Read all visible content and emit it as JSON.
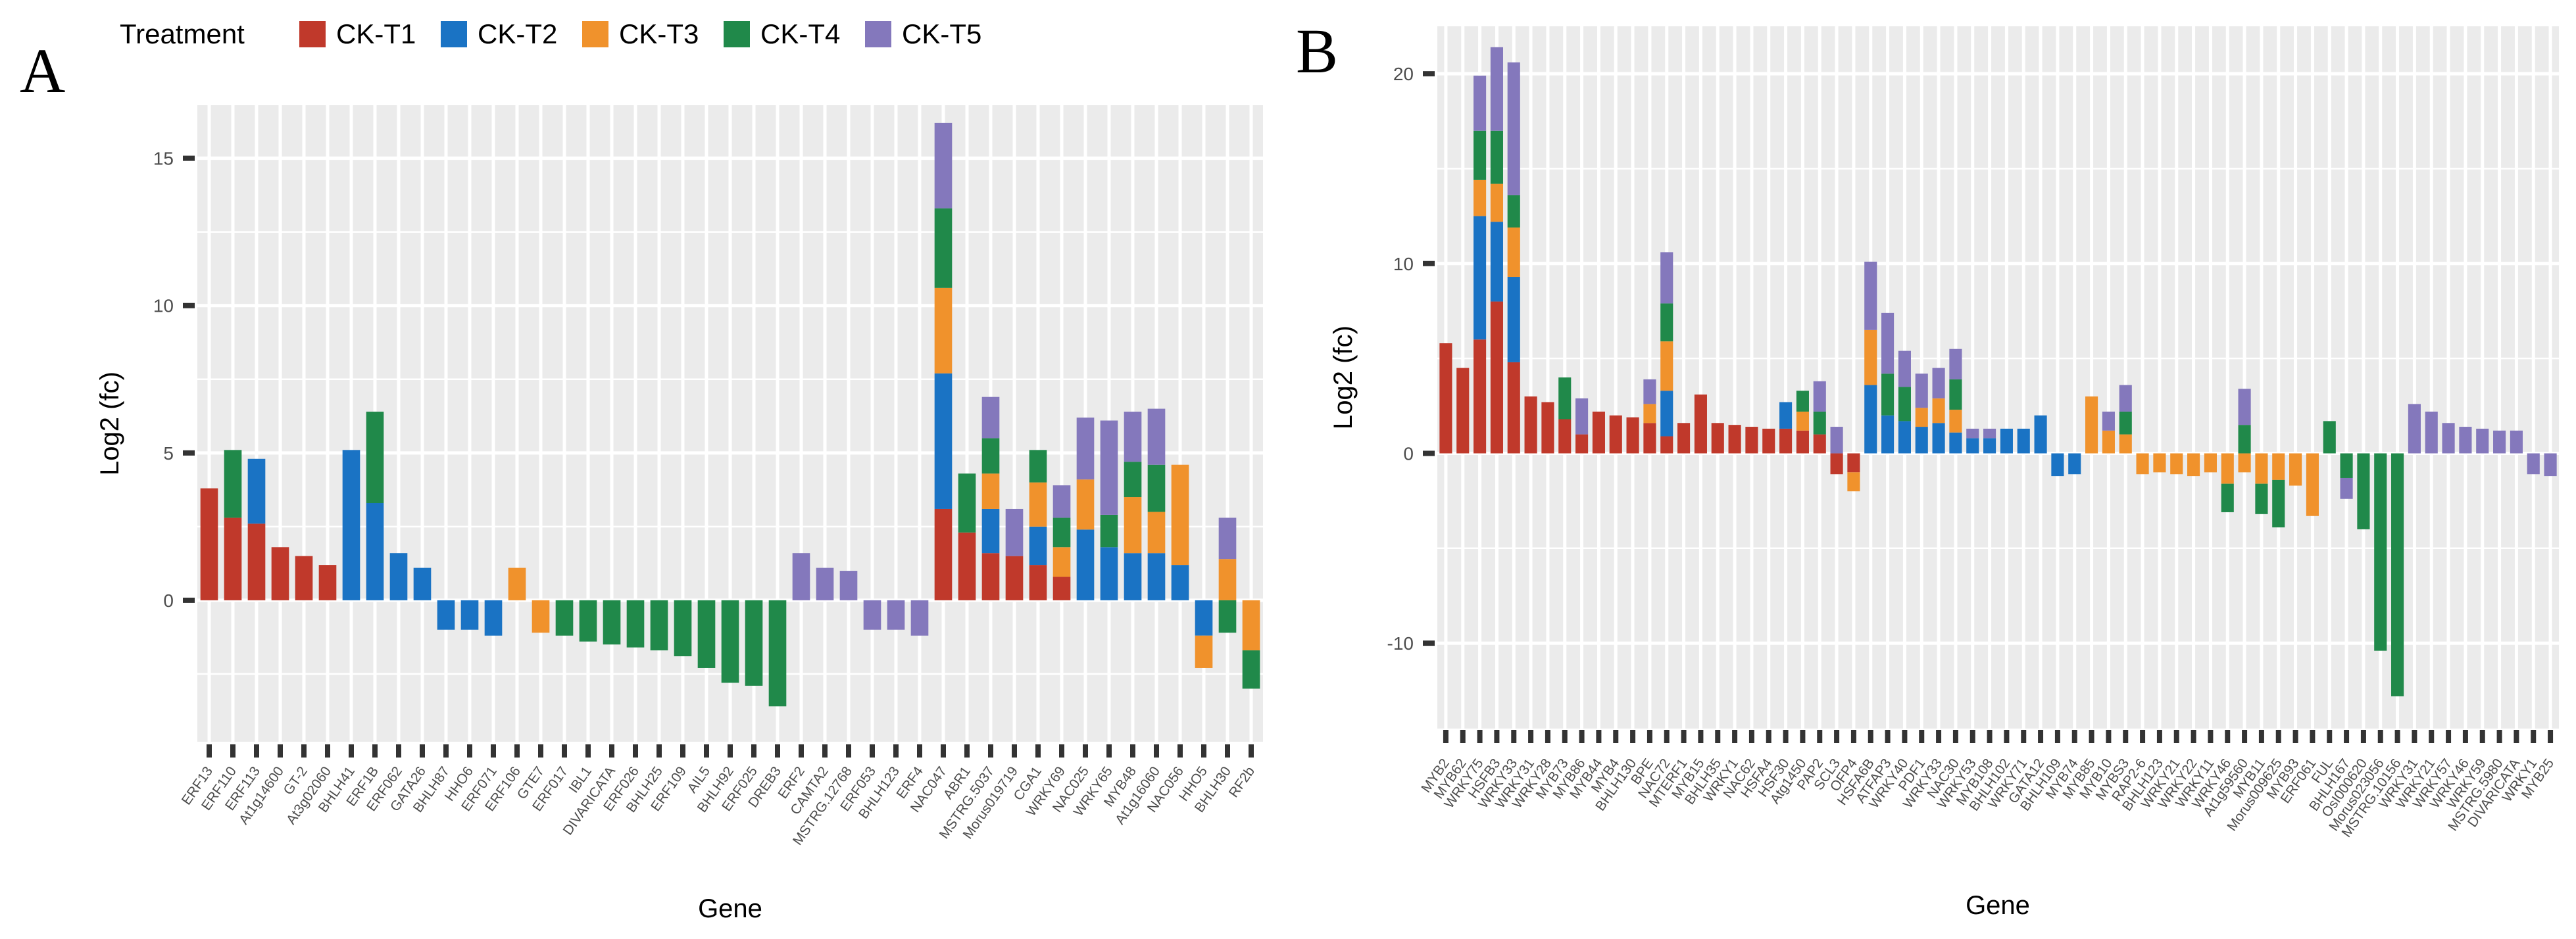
{
  "legend": {
    "title": "Treatment",
    "items": [
      {
        "name": "CK-T1",
        "color": "#C0392B"
      },
      {
        "name": "CK-T2",
        "color": "#1A73C4"
      },
      {
        "name": "CK-T3",
        "color": "#F0922C"
      },
      {
        "name": "CK-T4",
        "color": "#20894A"
      },
      {
        "name": "CK-T5",
        "color": "#8478BC"
      }
    ]
  },
  "chart_data": [
    {
      "type": "bar",
      "stacked": true,
      "panel_label": "A",
      "xlabel": "Gene",
      "ylabel": "Log2 (fc)",
      "ylim": [
        -4.8,
        16.8
      ],
      "yticks": [
        0,
        5,
        10,
        15
      ],
      "series_order": [
        "CK-T1",
        "CK-T2",
        "CK-T3",
        "CK-T4",
        "CK-T5"
      ],
      "categories": [
        "ERF13",
        "ERF110",
        "ERF113",
        "At1g14600",
        "GT-2",
        "At3g02060",
        "BHLH41",
        "ERF1B",
        "ERF062",
        "GATA26",
        "BHLH87",
        "HHO6",
        "ERF071",
        "ERF106",
        "GTE7",
        "ERF017",
        "IBL1",
        "DIVARICATA",
        "ERF026",
        "BHLH25",
        "ERF109",
        "AIL5",
        "BHLH92",
        "ERF025",
        "DREB3",
        "ERF2",
        "CAMTA2",
        "MSTRG.12768",
        "ERF053",
        "BHLH123",
        "ERF4",
        "NAC047",
        "ABR1",
        "MSTRG.5037",
        "Morus019719",
        "CGA1",
        "WRKY69",
        "NAC025",
        "WRKY65",
        "MYB48",
        "At1g16060",
        "NAC056",
        "HHO5",
        "BHLH30",
        "RF2b"
      ],
      "series": [
        {
          "name": "CK-T1",
          "values": [
            3.8,
            2.8,
            2.6,
            1.8,
            1.5,
            1.2,
            0,
            0,
            0,
            0,
            0,
            0,
            0,
            0,
            0,
            0,
            0,
            0,
            0,
            0,
            0,
            0,
            0,
            0,
            0,
            0,
            0,
            0,
            0,
            0,
            0,
            3.1,
            2.3,
            1.6,
            1.5,
            1.2,
            0.8,
            0,
            0,
            0,
            0,
            0,
            0,
            0,
            0
          ]
        },
        {
          "name": "CK-T2",
          "values": [
            0,
            0,
            2.2,
            0,
            0,
            0,
            5.1,
            3.3,
            1.6,
            1.1,
            -1.0,
            -1.0,
            -1.2,
            0,
            0,
            0,
            0,
            0,
            0,
            0,
            0,
            0,
            0,
            0,
            0,
            0,
            0,
            0,
            0,
            0,
            0,
            4.6,
            0,
            1.5,
            0,
            1.3,
            0,
            2.4,
            1.8,
            1.6,
            1.6,
            1.2,
            -1.2,
            0,
            0
          ]
        },
        {
          "name": "CK-T3",
          "values": [
            0,
            0,
            0,
            0,
            0,
            0,
            0,
            0,
            0,
            0,
            0,
            0,
            0,
            1.1,
            -1.1,
            0,
            0,
            0,
            0,
            0,
            0,
            0,
            0,
            0,
            0,
            0,
            0,
            0,
            0,
            0,
            0,
            2.9,
            0,
            1.2,
            0,
            1.5,
            1.0,
            1.7,
            0,
            1.9,
            1.4,
            3.4,
            -1.1,
            1.4,
            -1.7
          ]
        },
        {
          "name": "CK-T4",
          "values": [
            0,
            2.3,
            0,
            0,
            0,
            0,
            0,
            3.1,
            0,
            0,
            0,
            0,
            0,
            0,
            0,
            -1.2,
            -1.4,
            -1.5,
            -1.6,
            -1.7,
            -1.9,
            -2.3,
            -2.8,
            -2.9,
            -3.6,
            0,
            0,
            0,
            0,
            0,
            0,
            2.7,
            2.0,
            1.2,
            0,
            1.1,
            1.0,
            0,
            1.1,
            1.2,
            1.6,
            0,
            0,
            -1.1,
            -1.3
          ]
        },
        {
          "name": "CK-T5",
          "values": [
            0,
            0,
            0,
            0,
            0,
            0,
            0,
            0,
            0,
            0,
            0,
            0,
            0,
            0,
            0,
            0,
            0,
            0,
            0,
            0,
            0,
            0,
            0,
            0,
            0,
            1.6,
            1.1,
            1.0,
            -1.0,
            -1.0,
            -1.2,
            2.9,
            0,
            1.4,
            1.6,
            0,
            1.1,
            2.1,
            3.2,
            1.7,
            1.9,
            0,
            0,
            1.4,
            0
          ]
        }
      ]
    },
    {
      "type": "bar",
      "stacked": true,
      "panel_label": "B",
      "xlabel": "Gene",
      "ylabel": "Log2 (fc)",
      "ylim": [
        -14.5,
        22.5
      ],
      "yticks": [
        -10,
        0,
        10,
        20
      ],
      "series_order": [
        "CK-T1",
        "CK-T2",
        "CK-T3",
        "CK-T4",
        "CK-T5"
      ],
      "categories": [
        "MYB2",
        "MYB62",
        "WRKY75",
        "HSFB3",
        "WRKY33",
        "WRKY31",
        "WRKY28",
        "MYB73",
        "MYB86",
        "MYB44",
        "MYB4",
        "BHLH130",
        "BPE",
        "NAC72",
        "MTERF1",
        "MYB15",
        "BHLH35",
        "WRKY1",
        "NAC62",
        "HSFA4",
        "HSF30",
        "Atg1450",
        "PAP2",
        "SCL3",
        "OFP4",
        "HSFA6B",
        "ATFAP3",
        "WRKY40",
        "PDF1",
        "WRKY33",
        "NAC30",
        "WRKY53",
        "MYB108",
        "BHLH102",
        "WRKY71",
        "GATA12",
        "BHLH109",
        "MYB74",
        "MYB85",
        "MYB10",
        "MYBS3",
        "RAP2-6",
        "BHLH123",
        "WRKY21",
        "WRKY22",
        "WRKY11",
        "WRKY46",
        "At1g59560",
        "MYB11",
        "Morus009625",
        "MYB93",
        "ERF061",
        "FUL",
        "BHLH167",
        "OsI000620",
        "Morus023056",
        "MSTRG.10156",
        "WRKY31",
        "WRKY21",
        "WRKY57",
        "WRKY46",
        "WRKY59",
        "MSTRG.5980",
        "DIVARICATA",
        "WRKY1",
        "MYB25"
      ],
      "series": [
        {
          "name": "CK-T1",
          "values": [
            5.8,
            4.5,
            6.0,
            8.0,
            4.8,
            3.0,
            2.7,
            1.8,
            1.0,
            2.2,
            2.0,
            1.9,
            1.6,
            0.9,
            1.6,
            3.1,
            1.6,
            1.5,
            1.4,
            1.3,
            1.3,
            1.2,
            1.0,
            -1.1,
            -1.0,
            0,
            0,
            0,
            0,
            0,
            0,
            0,
            0,
            0,
            0,
            0,
            0,
            0,
            0,
            0,
            0,
            0,
            0,
            0,
            0,
            0,
            0,
            0,
            0,
            0,
            0,
            0,
            0,
            0,
            0,
            0,
            0,
            0,
            0,
            0,
            0,
            0,
            0,
            0,
            0,
            0
          ]
        },
        {
          "name": "CK-T2",
          "values": [
            0,
            0,
            6.5,
            4.2,
            4.5,
            0,
            0,
            0,
            0,
            0,
            0,
            0,
            0,
            2.4,
            0,
            0,
            0,
            0,
            0,
            0,
            1.4,
            0,
            0,
            0,
            0,
            3.6,
            2.0,
            1.7,
            1.4,
            1.6,
            1.1,
            0.8,
            0.8,
            1.3,
            1.3,
            2.0,
            -1.2,
            -1.1,
            0,
            0,
            0,
            0,
            0,
            0,
            0,
            0,
            0,
            0,
            0,
            0,
            0,
            0,
            0,
            0,
            0,
            0,
            0,
            0,
            0,
            0,
            0,
            0,
            0,
            0,
            0,
            0
          ]
        },
        {
          "name": "CK-T3",
          "values": [
            0,
            0,
            1.9,
            2.0,
            2.6,
            0,
            0,
            0,
            0,
            0,
            0,
            0,
            1.0,
            2.6,
            0,
            0,
            0,
            0,
            0,
            0,
            0,
            1.0,
            0,
            0,
            -1.0,
            2.9,
            0,
            0,
            1.0,
            1.3,
            1.2,
            0,
            0,
            0,
            0,
            0,
            0,
            0,
            3.0,
            1.2,
            1.0,
            -1.1,
            -1.0,
            -1.1,
            -1.2,
            -1.0,
            -1.6,
            -1.0,
            -1.6,
            -1.4,
            -1.7,
            -3.3,
            0,
            0,
            0,
            0,
            0,
            0,
            0,
            0,
            0,
            0,
            0,
            0,
            0,
            0
          ]
        },
        {
          "name": "CK-T4",
          "values": [
            0,
            0,
            2.6,
            2.8,
            1.7,
            0,
            0,
            2.2,
            0,
            0,
            0,
            0,
            0,
            2.0,
            0,
            0,
            0,
            0,
            0,
            0,
            0,
            1.1,
            1.2,
            0,
            0,
            0,
            2.2,
            1.8,
            0,
            0,
            1.6,
            0,
            0,
            0,
            0,
            0,
            0,
            0,
            0,
            0,
            1.2,
            0,
            0,
            0,
            0,
            0,
            -1.5,
            1.5,
            -1.6,
            -2.5,
            0,
            0,
            1.7,
            -1.3,
            -4.0,
            -10.4,
            -12.8,
            0,
            0,
            0,
            0,
            0,
            0,
            0,
            0,
            0
          ]
        },
        {
          "name": "CK-T5",
          "values": [
            0,
            0,
            2.9,
            4.4,
            7.0,
            0,
            0,
            0,
            1.9,
            0,
            0,
            0,
            1.3,
            2.7,
            0,
            0,
            0,
            0,
            0,
            0,
            0,
            0,
            1.6,
            1.4,
            0,
            3.6,
            3.2,
            1.9,
            1.8,
            1.6,
            1.6,
            0.5,
            0.5,
            0,
            0,
            0,
            0,
            0,
            0,
            1.0,
            1.4,
            0,
            0,
            0,
            0,
            0,
            0,
            1.9,
            0,
            0,
            0,
            0,
            0,
            -1.1,
            0,
            0,
            0,
            2.6,
            2.2,
            1.6,
            1.4,
            1.3,
            1.2,
            1.2,
            -1.1,
            -1.2
          ]
        }
      ]
    }
  ]
}
